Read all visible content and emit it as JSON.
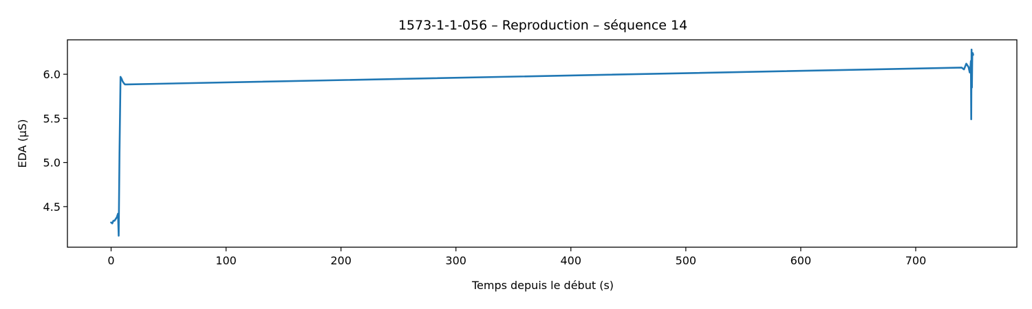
{
  "chart_data": {
    "type": "line",
    "title": "1573-1-1-056 – Reproduction – séquence 14",
    "xlabel": "Temps depuis le début (s)",
    "ylabel": "EDA (µS)",
    "xlim": [
      -38,
      788
    ],
    "ylim": [
      4.04,
      6.39
    ],
    "xticks": [
      0,
      100,
      200,
      300,
      400,
      500,
      600,
      700
    ],
    "yticks": [
      4.5,
      5.0,
      5.5,
      6.0
    ],
    "xtick_labels": [
      "0",
      "100",
      "200",
      "300",
      "400",
      "500",
      "600",
      "700"
    ],
    "ytick_labels": [
      "4.5",
      "5.0",
      "5.5",
      "6.0"
    ],
    "grid": false,
    "series": [
      {
        "color": "#1f77b4",
        "x": [
          0,
          1,
          2,
          3,
          4,
          5,
          6,
          6.6,
          7.3,
          8.2,
          9.1,
          10,
          11,
          12,
          14,
          740,
          742,
          744,
          745,
          746,
          747,
          747.5,
          748,
          748.3,
          748.6,
          748.9,
          749.2,
          749.6,
          750
        ],
        "y": [
          4.32,
          4.31,
          4.34,
          4.34,
          4.36,
          4.38,
          4.42,
          4.17,
          5.1,
          5.97,
          5.95,
          5.92,
          5.9,
          5.885,
          5.885,
          6.075,
          6.055,
          6.12,
          6.1,
          6.08,
          6.02,
          6.06,
          6.15,
          5.49,
          6.28,
          5.85,
          6.2,
          6.24,
          6.22
        ]
      }
    ]
  }
}
